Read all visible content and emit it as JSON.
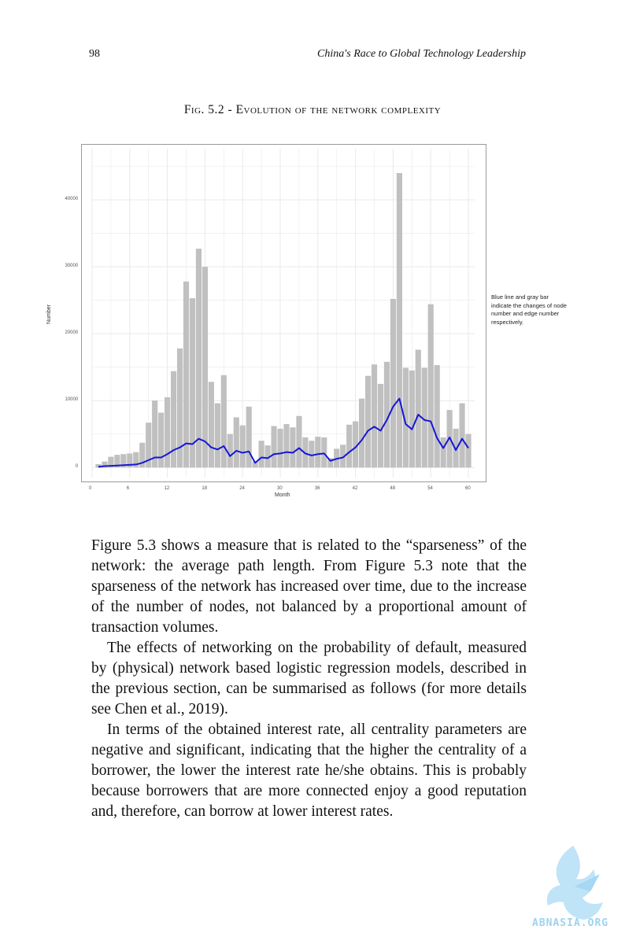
{
  "header": {
    "page_number": "98",
    "running_title": "China's Race to Global Technology Leadership"
  },
  "figure": {
    "caption": "Fig. 5.2 - Evolution of the network complexity",
    "annotation": "Blue line and gray bar indicate the changes of node number and edge number respectively."
  },
  "chart_data": {
    "type": "bar",
    "xlabel": "Month",
    "ylabel": "Number",
    "xlim": [
      0,
      61
    ],
    "ylim": [
      -1500,
      46000
    ],
    "x_ticks": [
      "0",
      "6",
      "12",
      "18",
      "24",
      "30",
      "36",
      "42",
      "48",
      "54",
      "60"
    ],
    "y_ticks": [
      "0",
      "10000",
      "20000",
      "30000",
      "40000"
    ],
    "grid": true,
    "colors": {
      "bars": "#c0c0c0",
      "line": "#1616d8",
      "grid": "#e9e9e9"
    },
    "x": [
      1,
      2,
      3,
      4,
      5,
      6,
      7,
      8,
      9,
      10,
      11,
      12,
      13,
      14,
      15,
      16,
      17,
      18,
      19,
      20,
      21,
      22,
      23,
      24,
      25,
      26,
      27,
      28,
      29,
      30,
      31,
      32,
      33,
      34,
      35,
      36,
      37,
      38,
      39,
      40,
      41,
      42,
      43,
      44,
      45,
      46,
      47,
      48,
      49,
      50,
      51,
      52,
      53,
      54,
      55,
      56,
      57,
      58,
      59,
      60
    ],
    "series": [
      {
        "type": "bar",
        "values": [
          500,
          900,
          1600,
          1900,
          2000,
          2100,
          2300,
          3700,
          6700,
          10000,
          8200,
          10500,
          14400,
          17800,
          27800,
          25300,
          32700,
          30000,
          12800,
          9600,
          13800,
          5000,
          7500,
          6300,
          9100,
          900,
          4000,
          3300,
          6200,
          5800,
          6500,
          6000,
          7700,
          4500,
          4000,
          4600,
          4500,
          1400,
          2800,
          3400,
          6400,
          6900,
          10300,
          13700,
          15400,
          12500,
          15800,
          25200,
          44000,
          14900,
          14500,
          17600,
          14900,
          24400,
          15300,
          4500,
          8600,
          5800,
          9600,
          5000
        ]
      },
      {
        "type": "line",
        "values": [
          100,
          200,
          250,
          300,
          350,
          400,
          450,
          700,
          1100,
          1500,
          1500,
          2000,
          2600,
          3000,
          3600,
          3500,
          4300,
          3900,
          3000,
          2700,
          3200,
          1700,
          2500,
          2200,
          2400,
          700,
          1500,
          1400,
          2000,
          2100,
          2300,
          2200,
          2900,
          2100,
          1800,
          2000,
          2100,
          1000,
          1300,
          1500,
          2300,
          3000,
          4100,
          5500,
          6100,
          5500,
          7100,
          9100,
          10300,
          6500,
          5700,
          7900,
          7100,
          6900,
          4400,
          2900,
          4500,
          2600,
          4300,
          2900
        ]
      }
    ]
  },
  "body": {
    "p1": "Figure 5.3 shows a measure that is related to the “sparseness” of the network: the average path length. From Figure 5.3 note that the sparseness of the network has increased over time, due to the increase of the number of nodes, not balanced by a proportional amount of transaction volumes.",
    "p2": "The effects of networking on the probability of default, measured by (physical) network based logistic regression models, described in the previous section, can be summarised as follows (for more details see Chen et al., 2019).",
    "p3": "In terms of the obtained interest rate, all centrality parameters are negative and significant, indicating that the higher the centrality of a borrower, the lower the interest rate he/she obtains. This is probably because borrowers that are more connected enjoy a good reputation and, therefore, can borrow at lower interest rates."
  },
  "watermark": {
    "text": "ABNASIA.ORG"
  }
}
